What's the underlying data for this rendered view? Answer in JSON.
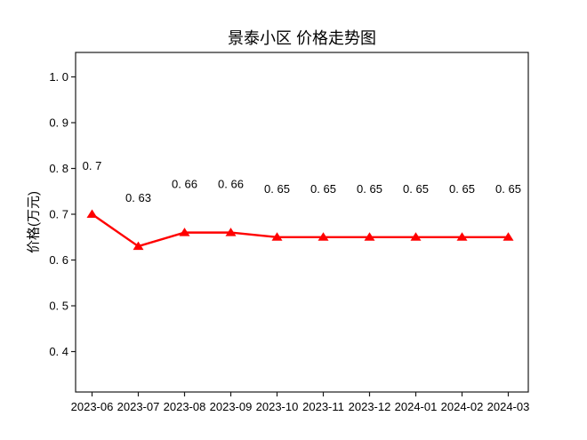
{
  "figure": {
    "title": "景泰小区 价格走势图",
    "ylabel": "价格(万元)"
  },
  "chart_data": {
    "type": "line",
    "title": "景泰小区 价格走势图",
    "xlabel": "",
    "ylabel": "价格(万元)",
    "x": [
      "2023-06",
      "2023-07",
      "2023-08",
      "2023-09",
      "2023-10",
      "2023-11",
      "2023-12",
      "2024-01",
      "2024-02",
      "2024-03"
    ],
    "series": [
      {
        "name": "价格",
        "values": [
          0.7,
          0.63,
          0.66,
          0.66,
          0.65,
          0.65,
          0.65,
          0.65,
          0.65,
          0.65
        ],
        "color": "#ff0000",
        "marker": "triangle-up"
      }
    ],
    "point_labels": [
      "0. 7",
      "0. 63",
      "0. 66",
      "0. 66",
      "0. 65",
      "0. 65",
      "0. 65",
      "0. 65",
      "0. 65",
      "0. 65"
    ],
    "yticks": [
      1.0,
      0.9,
      0.8,
      0.7,
      0.6,
      0.5,
      0.4
    ],
    "ytick_labels": [
      "1. 0",
      "0. 9",
      "0. 8",
      "0. 7",
      "0. 6",
      "0. 5",
      "0. 4"
    ],
    "ylim": [
      0.3117,
      1.0534
    ],
    "grid": false,
    "legend_position": "none",
    "axes_color": "#1a1a1a",
    "text_color": "#000000"
  }
}
